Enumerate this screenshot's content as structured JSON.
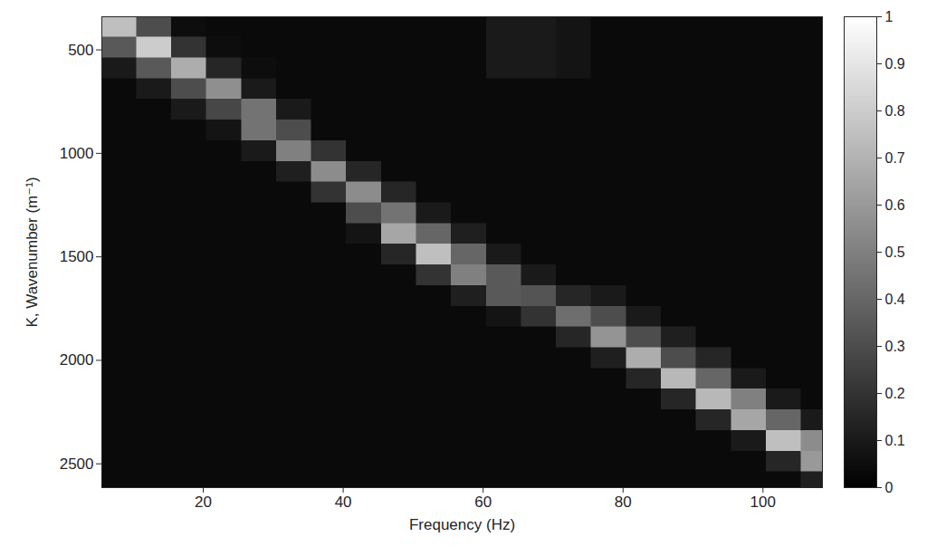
{
  "chart_data": {
    "type": "heatmap",
    "xlabel": "Frequency (Hz)",
    "ylabel": "K, Wavenumber (m⁻¹)",
    "xlim": [
      5.5,
      108.5
    ],
    "ylim": [
      340,
      2615
    ],
    "xticks": [
      20,
      40,
      60,
      80,
      100
    ],
    "yticks": [
      500,
      1000,
      1500,
      2000,
      2500
    ],
    "x_edges": [
      5.5,
      10.5,
      15.5,
      20.5,
      25.5,
      30.5,
      35.5,
      40.5,
      45.5,
      50.5,
      55.5,
      60.5,
      65.5,
      70.5,
      75.5,
      80.5,
      85.5,
      90.5,
      95.5,
      100.5,
      105.5,
      110.5
    ],
    "y_edges": [
      340,
      440,
      540,
      640,
      740,
      840,
      940,
      1040,
      1140,
      1240,
      1340,
      1440,
      1540,
      1640,
      1740,
      1840,
      1940,
      2040,
      2140,
      2240,
      2340,
      2440,
      2540,
      2640
    ],
    "z": [
      [
        0.75,
        0.35,
        0.1,
        0.04,
        0.04,
        0.04,
        0.04,
        0.04,
        0.04,
        0.04,
        0.04,
        0.04,
        0.04,
        0.04,
        0.04,
        0.04,
        0.04,
        0.04,
        0.04,
        0.04,
        0.04,
        0.04,
        0.04
      ],
      [
        0.3,
        0.8,
        0.35,
        0.1,
        0.04,
        0.04,
        0.04,
        0.04,
        0.04,
        0.04,
        0.04,
        0.04,
        0.04,
        0.04,
        0.04,
        0.04,
        0.04,
        0.04,
        0.04,
        0.04,
        0.04,
        0.04,
        0.04
      ],
      [
        0.05,
        0.2,
        0.68,
        0.3,
        0.1,
        0.04,
        0.04,
        0.04,
        0.04,
        0.04,
        0.04,
        0.04,
        0.04,
        0.04,
        0.04,
        0.04,
        0.04,
        0.04,
        0.04,
        0.04,
        0.04,
        0.04,
        0.04
      ],
      [
        0.04,
        0.05,
        0.15,
        0.56,
        0.28,
        0.08,
        0.04,
        0.04,
        0.04,
        0.04,
        0.04,
        0.04,
        0.04,
        0.04,
        0.04,
        0.04,
        0.04,
        0.04,
        0.04,
        0.04,
        0.04,
        0.04,
        0.04
      ],
      [
        0.04,
        0.04,
        0.05,
        0.1,
        0.45,
        0.45,
        0.1,
        0.04,
        0.04,
        0.04,
        0.04,
        0.04,
        0.04,
        0.04,
        0.04,
        0.04,
        0.04,
        0.04,
        0.04,
        0.04,
        0.04,
        0.04,
        0.04
      ],
      [
        0.04,
        0.04,
        0.04,
        0.04,
        0.1,
        0.3,
        0.5,
        0.12,
        0.04,
        0.04,
        0.04,
        0.04,
        0.04,
        0.04,
        0.04,
        0.04,
        0.04,
        0.04,
        0.04,
        0.04,
        0.04,
        0.04,
        0.04
      ],
      [
        0.04,
        0.04,
        0.04,
        0.04,
        0.04,
        0.04,
        0.2,
        0.55,
        0.2,
        0.04,
        0.04,
        0.04,
        0.04,
        0.04,
        0.04,
        0.04,
        0.04,
        0.04,
        0.04,
        0.04,
        0.04,
        0.04,
        0.04
      ],
      [
        0.04,
        0.04,
        0.04,
        0.04,
        0.04,
        0.04,
        0.04,
        0.15,
        0.55,
        0.3,
        0.08,
        0.04,
        0.04,
        0.04,
        0.04,
        0.04,
        0.04,
        0.04,
        0.04,
        0.04,
        0.04,
        0.04,
        0.04
      ],
      [
        0.04,
        0.04,
        0.04,
        0.04,
        0.04,
        0.04,
        0.04,
        0.04,
        0.15,
        0.45,
        0.65,
        0.15,
        0.04,
        0.04,
        0.04,
        0.04,
        0.04,
        0.04,
        0.04,
        0.04,
        0.04,
        0.04,
        0.04
      ],
      [
        0.04,
        0.04,
        0.04,
        0.04,
        0.04,
        0.04,
        0.04,
        0.04,
        0.04,
        0.1,
        0.4,
        0.75,
        0.2,
        0.04,
        0.04,
        0.04,
        0.04,
        0.04,
        0.04,
        0.04,
        0.04,
        0.04,
        0.04
      ],
      [
        0.04,
        0.04,
        0.04,
        0.04,
        0.04,
        0.04,
        0.04,
        0.04,
        0.04,
        0.04,
        0.12,
        0.4,
        0.5,
        0.12,
        0.04,
        0.04,
        0.04,
        0.04,
        0.04,
        0.04,
        0.04,
        0.04,
        0.04
      ],
      [
        0.1,
        0.1,
        0.1,
        0.04,
        0.04,
        0.04,
        0.04,
        0.04,
        0.04,
        0.04,
        0.04,
        0.1,
        0.35,
        0.35,
        0.08,
        0.04,
        0.04,
        0.04,
        0.04,
        0.04,
        0.04,
        0.04,
        0.04
      ],
      [
        0.1,
        0.1,
        0.1,
        0.04,
        0.04,
        0.04,
        0.04,
        0.04,
        0.04,
        0.04,
        0.04,
        0.04,
        0.1,
        0.33,
        0.2,
        0.04,
        0.04,
        0.04,
        0.04,
        0.04,
        0.04,
        0.04,
        0.04
      ],
      [
        0.08,
        0.08,
        0.08,
        0.04,
        0.04,
        0.04,
        0.04,
        0.04,
        0.04,
        0.04,
        0.04,
        0.04,
        0.04,
        0.15,
        0.43,
        0.15,
        0.04,
        0.04,
        0.04,
        0.04,
        0.04,
        0.04,
        0.04
      ],
      [
        0.04,
        0.04,
        0.04,
        0.04,
        0.04,
        0.04,
        0.04,
        0.04,
        0.04,
        0.04,
        0.04,
        0.04,
        0.04,
        0.1,
        0.3,
        0.58,
        0.12,
        0.04,
        0.04,
        0.04,
        0.04,
        0.04,
        0.04
      ],
      [
        0.04,
        0.04,
        0.04,
        0.04,
        0.04,
        0.04,
        0.04,
        0.04,
        0.04,
        0.04,
        0.04,
        0.04,
        0.04,
        0.04,
        0.1,
        0.3,
        0.68,
        0.15,
        0.04,
        0.04,
        0.04,
        0.04,
        0.04
      ],
      [
        0.04,
        0.04,
        0.04,
        0.04,
        0.04,
        0.04,
        0.04,
        0.04,
        0.04,
        0.04,
        0.04,
        0.04,
        0.04,
        0.04,
        0.04,
        0.12,
        0.3,
        0.72,
        0.15,
        0.04,
        0.04,
        0.04,
        0.04
      ],
      [
        0.04,
        0.04,
        0.04,
        0.04,
        0.04,
        0.04,
        0.04,
        0.04,
        0.04,
        0.04,
        0.04,
        0.04,
        0.04,
        0.04,
        0.04,
        0.04,
        0.15,
        0.4,
        0.72,
        0.15,
        0.04,
        0.04,
        0.04
      ],
      [
        0.04,
        0.04,
        0.04,
        0.04,
        0.04,
        0.04,
        0.04,
        0.04,
        0.04,
        0.04,
        0.04,
        0.04,
        0.04,
        0.04,
        0.04,
        0.04,
        0.04,
        0.1,
        0.5,
        0.65,
        0.1,
        0.04,
        0.04
      ],
      [
        0.04,
        0.04,
        0.04,
        0.04,
        0.04,
        0.04,
        0.04,
        0.04,
        0.04,
        0.04,
        0.04,
        0.04,
        0.04,
        0.04,
        0.04,
        0.04,
        0.04,
        0.04,
        0.1,
        0.4,
        0.75,
        0.15,
        0.04
      ],
      [
        0.04,
        0.04,
        0.04,
        0.04,
        0.04,
        0.04,
        0.04,
        0.04,
        0.04,
        0.04,
        0.04,
        0.04,
        0.04,
        0.04,
        0.04,
        0.04,
        0.04,
        0.04,
        0.04,
        0.1,
        0.55,
        0.6,
        0.12
      ]
    ],
    "zlim": [
      0,
      1
    ],
    "zticks": [
      0,
      0.1,
      0.2,
      0.3,
      0.4,
      0.5,
      0.6,
      0.7,
      0.8,
      0.9,
      1
    ]
  }
}
